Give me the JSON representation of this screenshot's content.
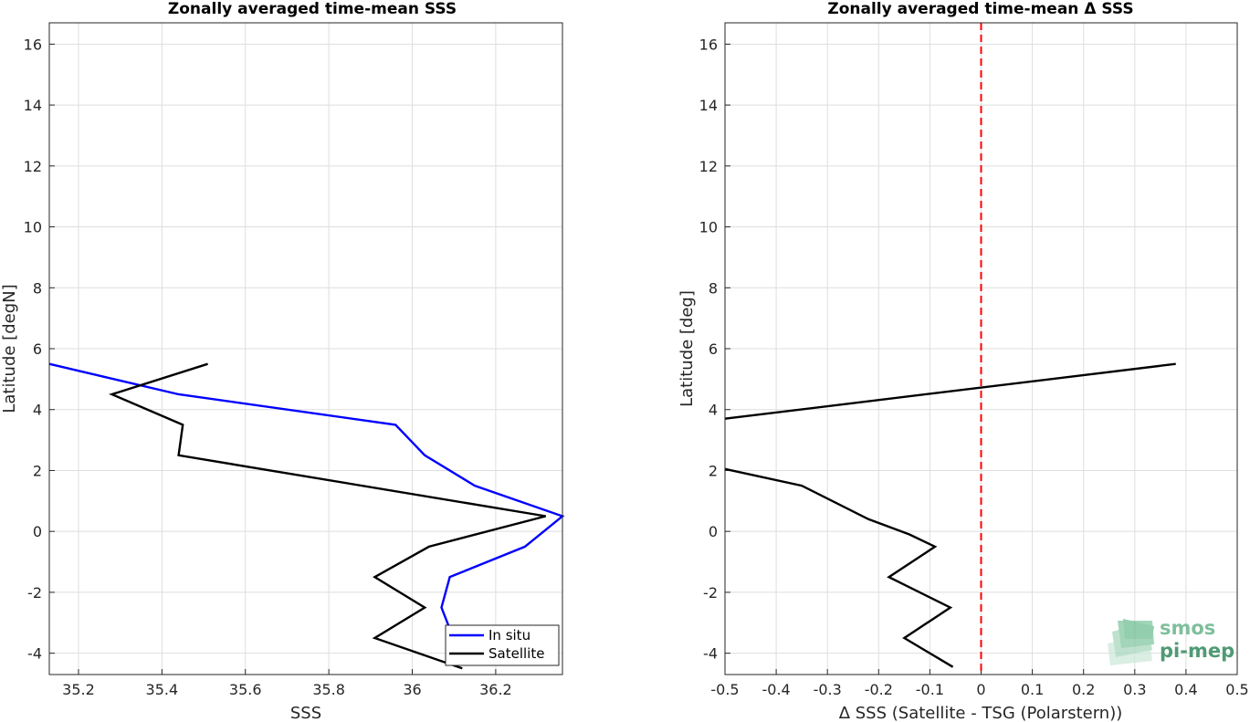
{
  "chart_data": [
    {
      "type": "line",
      "title": "Zonally averaged time-mean SSS",
      "xlabel": "SSS",
      "ylabel": "Latitude [degN]",
      "xlim": [
        35.13,
        36.36
      ],
      "ylim": [
        -4.7,
        16.7
      ],
      "xticks": [
        35.2,
        35.4,
        35.6,
        35.8,
        36,
        36.2
      ],
      "yticks": [
        -4,
        -2,
        0,
        2,
        4,
        6,
        8,
        10,
        12,
        14,
        16
      ],
      "grid": true,
      "legend": "bottom-right",
      "series": [
        {
          "name": "In situ",
          "color": "#0000ff",
          "x": [
            35.13,
            35.44,
            35.96,
            36.03,
            36.15,
            36.36,
            36.27,
            36.09,
            36.07,
            36.09
          ],
          "y": [
            5.5,
            4.5,
            3.5,
            2.5,
            1.5,
            0.5,
            -0.5,
            -1.5,
            -2.5,
            -3.2
          ]
        },
        {
          "name": "Satellite",
          "color": "#000000",
          "x": [
            35.51,
            35.28,
            35.45,
            35.44,
            36.32,
            36.04,
            35.91,
            36.03,
            35.91,
            36.12
          ],
          "y": [
            5.5,
            4.5,
            3.5,
            2.5,
            0.5,
            -0.5,
            -1.5,
            -2.5,
            -3.5,
            -4.5
          ]
        }
      ]
    },
    {
      "type": "line",
      "title": "Zonally averaged time-mean Δ SSS",
      "xlabel": "Δ SSS (Satellite - TSG (Polarstern))",
      "ylabel": "Latitude [deg]",
      "xlim": [
        -0.5,
        0.5
      ],
      "ylim": [
        -4.7,
        16.7
      ],
      "xticks": [
        -0.5,
        -0.4,
        -0.3,
        -0.2,
        -0.1,
        0,
        0.1,
        0.2,
        0.3,
        0.4,
        0.5
      ],
      "yticks": [
        -4,
        -2,
        0,
        2,
        4,
        6,
        8,
        10,
        12,
        14,
        16
      ],
      "grid": true,
      "reference_line": {
        "x": 0,
        "color": "#ff0000",
        "style": "dashed"
      },
      "series": [
        {
          "color": "#000000",
          "segments": [
            {
              "x": [
                -0.5,
                0.38
              ],
              "y": [
                3.7,
                5.5
              ]
            },
            {
              "x": [
                -0.5,
                -0.35,
                -0.22,
                -0.14,
                -0.09,
                -0.18,
                -0.06,
                -0.15,
                -0.055
              ],
              "y": [
                2.05,
                1.5,
                0.4,
                -0.1,
                -0.5,
                -1.5,
                -2.5,
                -3.5,
                -4.45
              ]
            }
          ]
        }
      ]
    }
  ],
  "logo": {
    "line1": "smos",
    "line2": "pi-mep"
  }
}
